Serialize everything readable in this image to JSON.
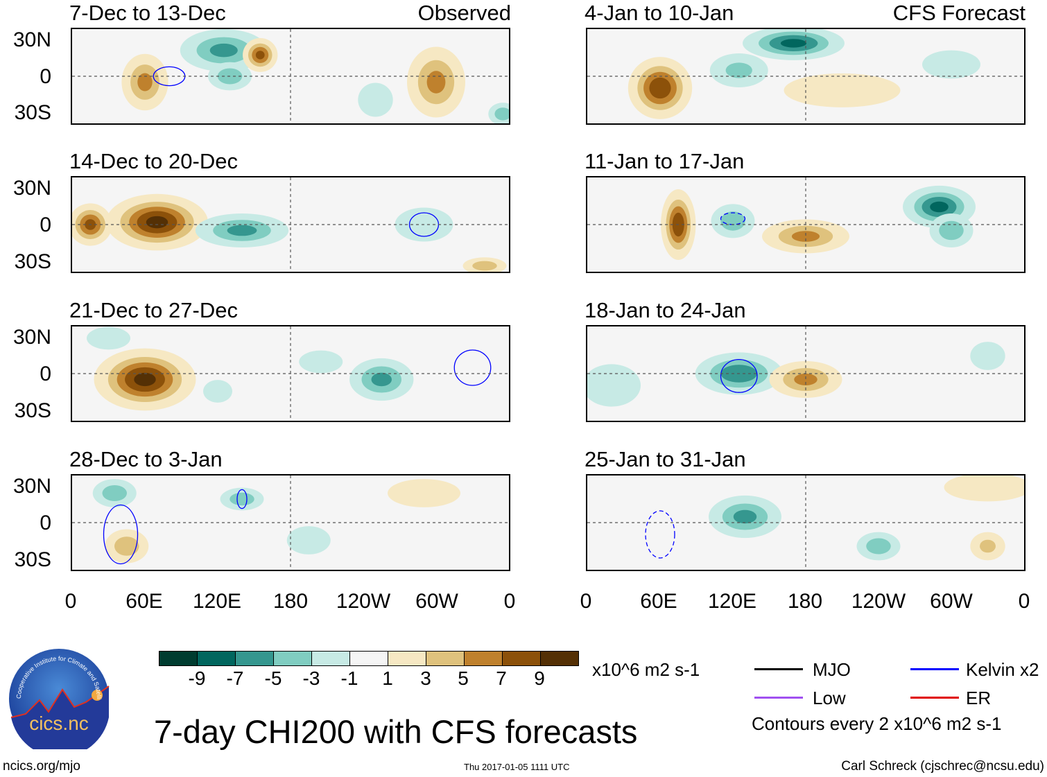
{
  "panels": [
    {
      "title": "7-Dec to 13-Dec",
      "tag": "Observed"
    },
    {
      "title": "4-Jan to 10-Jan",
      "tag": "CFS Forecast"
    },
    {
      "title": "14-Dec to 20-Dec",
      "tag": ""
    },
    {
      "title": "11-Jan to 17-Jan",
      "tag": ""
    },
    {
      "title": "21-Dec to 27-Dec",
      "tag": ""
    },
    {
      "title": "18-Jan to 24-Jan",
      "tag": ""
    },
    {
      "title": "28-Dec to 3-Jan",
      "tag": ""
    },
    {
      "title": "25-Jan to 31-Jan",
      "tag": ""
    }
  ],
  "lat_labels": [
    "30N",
    "0",
    "30S"
  ],
  "lon_labels": [
    "0",
    "60E",
    "120E",
    "180",
    "120W",
    "60W",
    "0"
  ],
  "colorbar": {
    "colors": [
      "#003c30",
      "#01665e",
      "#35978f",
      "#80cdc1",
      "#c7eae5",
      "#f5f5f5",
      "#f6e8c3",
      "#dfc27d",
      "#bf812d",
      "#8c510a",
      "#543005"
    ],
    "labels": [
      "-9",
      "-7",
      "-5",
      "-3",
      "-1",
      "1",
      "3",
      "5",
      "7",
      "9"
    ],
    "units": "x10^6 m2 s-1"
  },
  "legend": {
    "items": [
      {
        "label": "MJO",
        "color": "#000000"
      },
      {
        "label": "Kelvin x2",
        "color": "#0000ff"
      },
      {
        "label": "Low",
        "color": "#a050f0"
      },
      {
        "label": "ER",
        "color": "#e00000"
      }
    ],
    "note": "Contours every 2 x10^6 m2 s-1"
  },
  "main_title": "7-day CHI200 with CFS forecasts",
  "logo": {
    "text": "cics.nc",
    "ring_text": "Cooperative Institute for Climate and Satellites"
  },
  "footer": {
    "url": "ncics.org/mjo",
    "timestamp": "Thu 2017-01-05 1111 UTC",
    "credit": "Carl Schreck (cjschrec@ncsu.edu)"
  },
  "chart_data": {
    "type": "heatmap",
    "title": "7-day CHI200 with CFS forecasts",
    "variable": "CHI200 anomaly",
    "units": "x10^6 m2 s-1",
    "levels": [
      -9,
      -7,
      -5,
      -3,
      -1,
      1,
      3,
      5,
      7,
      9
    ],
    "lon_range": [
      0,
      360
    ],
    "lat_range": [
      -40,
      40
    ],
    "features_note": "approximate anomaly centers per panel: lon (deg E), lat (deg), value, extent in degrees",
    "panels": [
      {
        "anoms": [
          [
            60,
            -5,
            6,
            16,
            20
          ],
          [
            125,
            22,
            -6,
            30,
            15
          ],
          [
            130,
            0,
            -5,
            15,
            10
          ],
          [
            155,
            18,
            8,
            12,
            12
          ],
          [
            300,
            -5,
            6,
            20,
            25
          ],
          [
            355,
            -32,
            -5,
            10,
            8
          ],
          [
            250,
            -20,
            -3,
            12,
            12
          ]
        ],
        "kelvin": [
          [
            80,
            0,
            13,
            8,
            "solid"
          ]
        ]
      },
      {
        "anoms": [
          [
            60,
            -10,
            9,
            22,
            22
          ],
          [
            170,
            28,
            -8,
            35,
            12
          ],
          [
            125,
            5,
            -4,
            20,
            12
          ],
          [
            210,
            -12,
            2,
            40,
            12
          ],
          [
            300,
            10,
            -3,
            20,
            10
          ]
        ],
        "kelvin": []
      },
      {
        "anoms": [
          [
            70,
            2,
            10,
            35,
            20
          ],
          [
            15,
            0,
            8,
            15,
            15
          ],
          [
            140,
            -5,
            -6,
            32,
            12
          ],
          [
            340,
            -35,
            5,
            15,
            6
          ],
          [
            290,
            0,
            -3,
            20,
            12
          ]
        ],
        "kelvin": [
          [
            290,
            0,
            12,
            10,
            "solid"
          ]
        ]
      },
      {
        "anoms": [
          [
            75,
            0,
            9,
            12,
            25
          ],
          [
            180,
            -10,
            6,
            30,
            12
          ],
          [
            290,
            15,
            -8,
            25,
            15
          ],
          [
            120,
            3,
            -5,
            15,
            12
          ],
          [
            300,
            -5,
            -5,
            15,
            12
          ]
        ],
        "kelvin": [
          [
            120,
            5,
            10,
            5,
            "dashed"
          ]
        ]
      },
      {
        "anoms": [
          [
            60,
            -5,
            10,
            35,
            22
          ],
          [
            255,
            -5,
            -6,
            22,
            15
          ],
          [
            205,
            10,
            -3,
            15,
            8
          ],
          [
            30,
            30,
            -3,
            15,
            8
          ],
          [
            120,
            -15,
            -3,
            10,
            8
          ]
        ],
        "kelvin": [
          [
            330,
            5,
            15,
            15,
            "solid"
          ]
        ]
      },
      {
        "anoms": [
          [
            125,
            0,
            -7,
            30,
            15
          ],
          [
            180,
            -5,
            6,
            25,
            13
          ],
          [
            330,
            15,
            -3,
            12,
            10
          ],
          [
            20,
            -10,
            -2,
            20,
            15
          ]
        ],
        "kelvin": [
          [
            125,
            -2,
            15,
            14,
            "solid"
          ]
        ]
      },
      {
        "anoms": [
          [
            45,
            -20,
            5,
            15,
            12
          ],
          [
            35,
            25,
            -5,
            15,
            10
          ],
          [
            140,
            20,
            -5,
            15,
            8
          ],
          [
            290,
            25,
            3,
            25,
            10
          ],
          [
            195,
            -15,
            -3,
            15,
            10
          ]
        ],
        "kelvin": [
          [
            140,
            20,
            4,
            8,
            "solid"
          ],
          [
            40,
            -10,
            14,
            25,
            "solid"
          ]
        ]
      },
      {
        "anoms": [
          [
            130,
            5,
            -6,
            25,
            15
          ],
          [
            240,
            -20,
            -5,
            15,
            10
          ],
          [
            330,
            -20,
            4,
            12,
            10
          ],
          [
            330,
            30,
            3,
            30,
            10
          ]
        ],
        "kelvin": [
          [
            60,
            -10,
            12,
            20,
            "dashed"
          ]
        ]
      }
    ]
  }
}
